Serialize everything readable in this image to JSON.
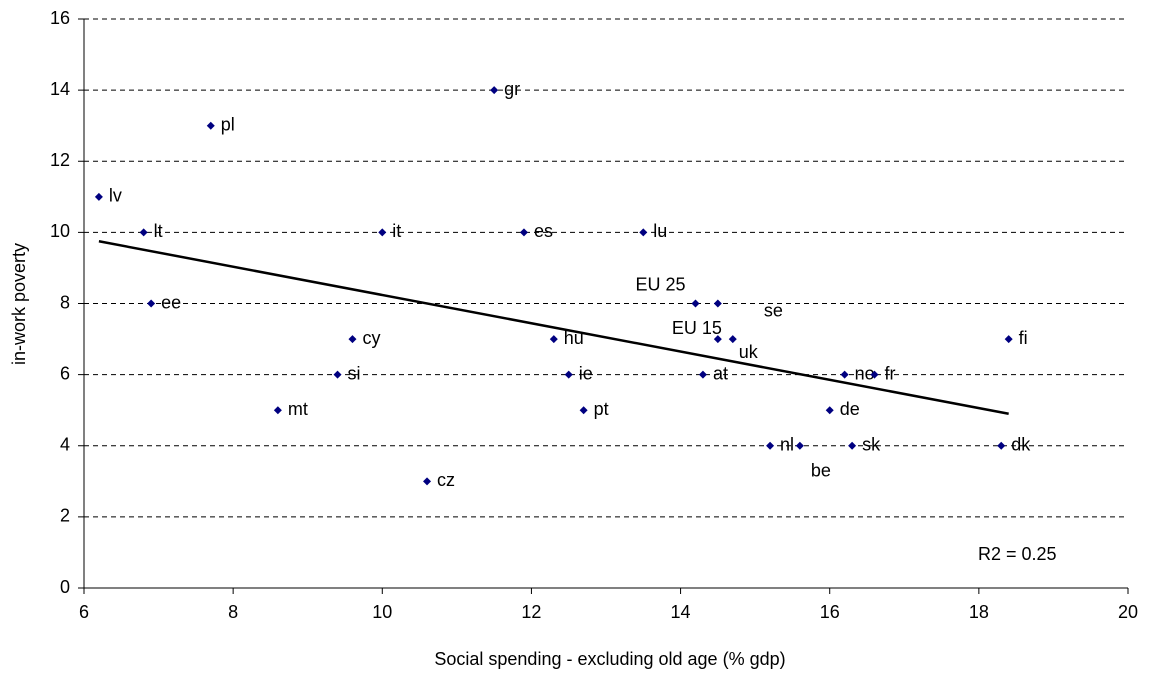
{
  "chart_data": {
    "type": "scatter",
    "x_label": "Social spending - excluding old age (% gdp)",
    "y_label": "in-work poverty",
    "annotation": "R2 = 0.25",
    "xlim": [
      6,
      20
    ],
    "xticks": [
      6,
      8,
      10,
      12,
      14,
      16,
      18,
      20
    ],
    "ylim": [
      0,
      16
    ],
    "yticks": [
      0,
      2,
      4,
      6,
      8,
      10,
      12,
      14,
      16
    ],
    "grid": true,
    "color": "#000080",
    "series": [
      {
        "name": "countries",
        "color": "#000080",
        "labels": [
          "lv",
          "lt",
          "ee",
          "pl",
          "mt",
          "si",
          "cy",
          "it",
          "cz",
          "gr",
          "es",
          "hu",
          "ie",
          "pt",
          "lu",
          "EU 25",
          "se",
          "EU 15",
          "uk",
          "at",
          "nl",
          "be",
          "de",
          "no",
          "fr",
          "sk",
          "dk",
          "fi"
        ],
        "x": [
          6.2,
          6.8,
          6.9,
          7.7,
          8.6,
          9.4,
          9.6,
          10.0,
          10.6,
          11.5,
          11.9,
          12.3,
          12.5,
          12.7,
          13.5,
          14.2,
          14.5,
          14.5,
          14.7,
          14.3,
          15.2,
          15.6,
          16.0,
          16.2,
          16.6,
          16.3,
          18.3,
          18.4
        ],
        "values": [
          11,
          10,
          8,
          13,
          5,
          6,
          7,
          10,
          3,
          14,
          10,
          7,
          6,
          5,
          10,
          8,
          8,
          7,
          7,
          6,
          4,
          4,
          5,
          6,
          6,
          4,
          4,
          7
        ]
      }
    ],
    "trendline": {
      "color": "#000000",
      "x": [
        6.2,
        18.4
      ],
      "values": [
        9.75,
        4.9
      ]
    }
  }
}
